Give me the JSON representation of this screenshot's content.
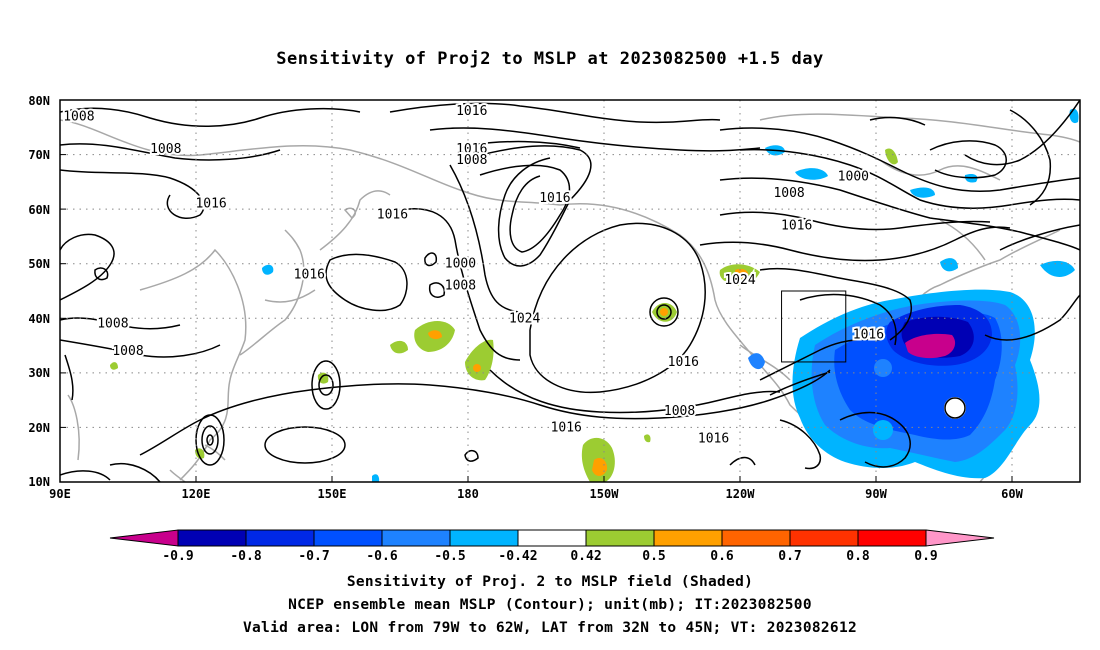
{
  "title": "Sensitivity of Proj2 to MSLP at 2023082500 +1.5 day",
  "lat_labels": [
    "80N",
    "70N",
    "60N",
    "50N",
    "40N",
    "30N",
    "20N",
    "10N"
  ],
  "lon_labels": [
    "90E",
    "120E",
    "150E",
    "180",
    "150W",
    "120W",
    "90W",
    "60W"
  ],
  "contour_labels": [
    {
      "text": "1008",
      "lon": 95,
      "lat": 77
    },
    {
      "text": "1008",
      "lon": 118,
      "lat": 71
    },
    {
      "text": "1016",
      "lon": 130,
      "lat": 61
    },
    {
      "text": "1016",
      "lon": -161,
      "lat": 78
    },
    {
      "text": "1016",
      "lon": -161,
      "lat": 71
    },
    {
      "text": "1008",
      "lon": -161,
      "lat": 69
    },
    {
      "text": "1016",
      "lon": 178,
      "lat": 59
    },
    {
      "text": "1016",
      "lon": -139,
      "lat": 62
    },
    {
      "text": "1000",
      "lon": -164,
      "lat": 50
    },
    {
      "text": "1008",
      "lon": -164,
      "lat": 46
    },
    {
      "text": "1016",
      "lon": 156,
      "lat": 48
    },
    {
      "text": "1024",
      "lon": -147,
      "lat": 40
    },
    {
      "text": "1008",
      "lon": 104,
      "lat": 39
    },
    {
      "text": "1008",
      "lon": 108,
      "lat": 34
    },
    {
      "text": "1016",
      "lon": -136,
      "lat": 20
    },
    {
      "text": "1008",
      "lon": -77,
      "lat": 63
    },
    {
      "text": "1000",
      "lon": -60,
      "lat": 66
    },
    {
      "text": "1016",
      "lon": -75,
      "lat": 57
    },
    {
      "text": "1024",
      "lon": -90,
      "lat": 47
    },
    {
      "text": "1016",
      "lon": -56,
      "lat": 37
    },
    {
      "text": "1016",
      "lon": -105,
      "lat": 32
    },
    {
      "text": "1008",
      "lon": -106,
      "lat": 23
    },
    {
      "text": "1016",
      "lon": -97,
      "lat": 18
    }
  ],
  "colorbar": {
    "labels": [
      "-0.9",
      "-0.8",
      "-0.7",
      "-0.6",
      "-0.5",
      "-0.42",
      "0.42",
      "0.5",
      "0.6",
      "0.7",
      "0.8",
      "0.9"
    ],
    "colors": [
      "#c8008c",
      "#0000b4",
      "#0028e6",
      "#0050ff",
      "#1e82ff",
      "#00b4ff",
      "#ffffff",
      "#9ccc32",
      "#ffa000",
      "#ff6400",
      "#ff3200",
      "#ff0000",
      "#ff96c8"
    ]
  },
  "valid_area": {
    "lon_min": -79,
    "lon_max": -62,
    "lat_min": 32,
    "lat_max": 45
  },
  "caption": {
    "line1": "Sensitivity of Proj. 2 to MSLP field (Shaded)",
    "line2": "NCEP ensemble mean MSLP (Contour); unit(mb); IT:2023082500",
    "line3": "Valid area: LON from 79W to 62W, LAT from 32N to 45N; VT: 2023082612"
  }
}
